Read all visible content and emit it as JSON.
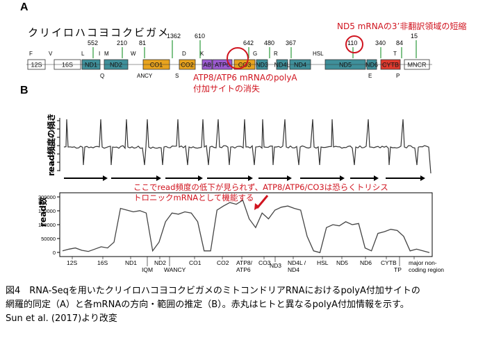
{
  "panel_a": {
    "label": "A",
    "species": "クリイロハコヨコクビガメ",
    "note_nd5": "ND5 mRNAの3’非翻訳領域の短縮",
    "note_atp": "ATP8/ATP6 mRNAのpolyA\n付加サイトの消失",
    "counts": [
      {
        "text": "552"
      },
      {
        "text": "210"
      },
      {
        "text": "81"
      },
      {
        "text": "1362"
      },
      {
        "text": "610"
      },
      {
        "text": "642"
      },
      {
        "text": "480"
      },
      {
        "text": "367"
      },
      {
        "text": "110"
      },
      {
        "text": "340"
      },
      {
        "text": "84"
      },
      {
        "text": "15"
      }
    ],
    "genes": [
      {
        "name": "12S",
        "color": "#ffffff"
      },
      {
        "name": "16S",
        "color": "#ffffff"
      },
      {
        "name": "ND1",
        "color": "#3f8f9a"
      },
      {
        "name": "ND2",
        "color": "#3f8f9a"
      },
      {
        "name": "CO1",
        "color": "#e8a31e"
      },
      {
        "name": "CO2",
        "color": "#e8a31e"
      },
      {
        "name": "A8",
        "color": "#9c5bd1"
      },
      {
        "name": "ATP6",
        "color": "#9c5bd1"
      },
      {
        "name": "CO3",
        "color": "#e8a31e"
      },
      {
        "name": "ND3",
        "color": "#3f8f9a"
      },
      {
        "name": "ND4L",
        "color": "#3f8f9a"
      },
      {
        "name": "ND4",
        "color": "#3f8f9a"
      },
      {
        "name": "ND5",
        "color": "#3f8f9a"
      },
      {
        "name": "ND6",
        "color": "#3f8f9a"
      },
      {
        "name": "CYTB",
        "color": "#e03a2e"
      },
      {
        "name": "MNCR",
        "color": "#ffffff"
      }
    ],
    "trna_top": [
      "F",
      "V",
      "L",
      "I",
      "M",
      "W",
      "D",
      "K",
      "G",
      "R",
      "HSL",
      "T"
    ],
    "trna_bottom": [
      "Q",
      "ANCY",
      "S",
      "E",
      "P"
    ]
  },
  "panel_b": {
    "label": "B",
    "ylabel_top": "read頻度の傾き",
    "ylabel_bottom": "read数",
    "top_ticks": [
      "3",
      "2",
      "1",
      "0",
      "-1",
      "-2",
      "-3"
    ],
    "bottom_ticks": [
      "200000",
      "150000",
      "100000",
      "50000",
      "0"
    ],
    "annotation": "ここでread頻度の低下が見られず、ATP8/ATP6/CO3は恐らくトリシス\nトロニックmRNAとして機能する",
    "gene_axis": [
      "12S",
      "16S",
      "ND1",
      "IQM",
      "ND2",
      "WANCY",
      "CO1",
      "CO2",
      "ATP8/\nATP6",
      "CO3",
      "ND3",
      "ND4L /\nND4",
      "HSL",
      "ND5",
      "ND6",
      "CYTB",
      "TP",
      "major non-\ncoding region"
    ]
  },
  "chart_data": {
    "type": "line",
    "series": [
      {
        "values": [
          0.05,
          0.08,
          0.1,
          0.06,
          0.04,
          0.08,
          0.12,
          0.1,
          0.2,
          0.78,
          0.75,
          0.72,
          0.74,
          0.7,
          0.05,
          0.2,
          0.55,
          0.7,
          0.68,
          0.72,
          0.7,
          0.55,
          0.05,
          0.05,
          0.75,
          0.82,
          0.88,
          0.85,
          0.92,
          0.6,
          0.45,
          0.7,
          0.6,
          0.75,
          0.8,
          0.82,
          0.78,
          0.75,
          0.3,
          0.05,
          0.02,
          0.45,
          0.5,
          0.48,
          0.55,
          0.5,
          0.52,
          0.1,
          0.05,
          0.35,
          0.38,
          0.42,
          0.4,
          0.3,
          0.05,
          0.08,
          0.05,
          0.02
        ]
      }
    ]
  },
  "caption": {
    "line1": "図4　RNA-Seqを用いたクリイロハコヨコクビガメのミトコンドリアRNAにおけるpolyA付加サイトの",
    "line2": "網羅的同定（A）と各mRNAの方向・範囲の推定（B）。赤丸はヒトと異なるpolyA付加情報を示す。",
    "line3": "Sun et al. (2017)より改変"
  }
}
